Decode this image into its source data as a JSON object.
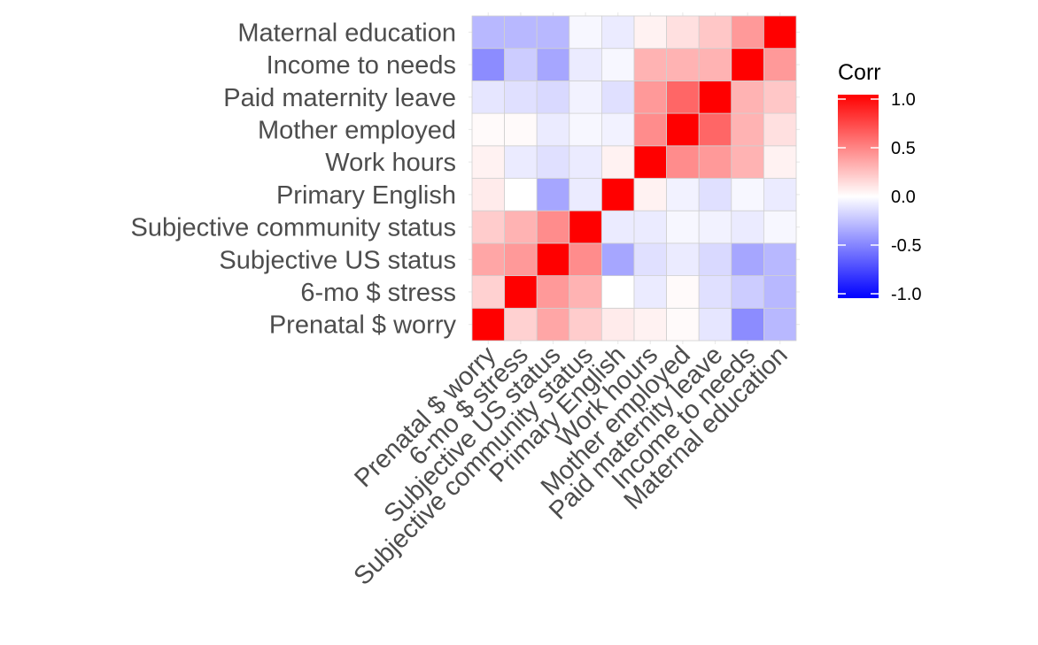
{
  "chart_data": {
    "type": "heatmap",
    "title": "",
    "xlabel": "",
    "ylabel": "",
    "variables": [
      "Prenatal $ worry",
      "6-mo $ stress",
      "Subjective US status",
      "Subjective community status",
      "Primary English",
      "Work hours",
      "Mother employed",
      "Paid maternity leave",
      "Income to needs",
      "Maternal education"
    ],
    "matrix": [
      [
        1.0,
        0.18,
        0.35,
        0.2,
        0.08,
        0.05,
        0.02,
        -0.1,
        -0.45,
        -0.28
      ],
      [
        0.18,
        1.0,
        0.4,
        0.3,
        0.0,
        -0.08,
        0.02,
        -0.12,
        -0.2,
        -0.28
      ],
      [
        0.35,
        0.4,
        1.0,
        0.45,
        -0.35,
        -0.12,
        -0.08,
        -0.15,
        -0.35,
        -0.28
      ],
      [
        0.2,
        0.3,
        0.45,
        1.0,
        -0.08,
        -0.08,
        -0.03,
        -0.05,
        -0.08,
        -0.03
      ],
      [
        0.08,
        0.0,
        -0.35,
        -0.08,
        1.0,
        0.05,
        -0.05,
        -0.12,
        -0.03,
        -0.08
      ],
      [
        0.05,
        -0.08,
        -0.12,
        -0.08,
        0.05,
        1.0,
        0.45,
        0.4,
        0.3,
        0.05
      ],
      [
        0.02,
        0.02,
        -0.08,
        -0.03,
        -0.05,
        0.45,
        1.0,
        0.6,
        0.3,
        0.12
      ],
      [
        -0.1,
        -0.12,
        -0.15,
        -0.05,
        -0.12,
        0.4,
        0.6,
        1.0,
        0.3,
        0.22
      ],
      [
        -0.45,
        -0.2,
        -0.35,
        -0.08,
        -0.03,
        0.3,
        0.3,
        0.3,
        1.0,
        0.4
      ],
      [
        -0.28,
        -0.28,
        -0.28,
        -0.03,
        -0.08,
        0.05,
        0.12,
        0.22,
        0.4,
        1.0
      ]
    ],
    "color_scale": {
      "low": "#0000ff",
      "mid": "#ffffff",
      "high": "#ff0000",
      "limits": [
        -1,
        1
      ]
    },
    "legend": {
      "title": "Corr",
      "position": "right",
      "ticks": [
        1.0,
        0.5,
        0.0,
        -0.5,
        -1.0
      ],
      "tick_labels": [
        "1.0",
        "0.5",
        "0.0",
        "-0.5",
        "-1.0"
      ]
    },
    "grid": true
  }
}
